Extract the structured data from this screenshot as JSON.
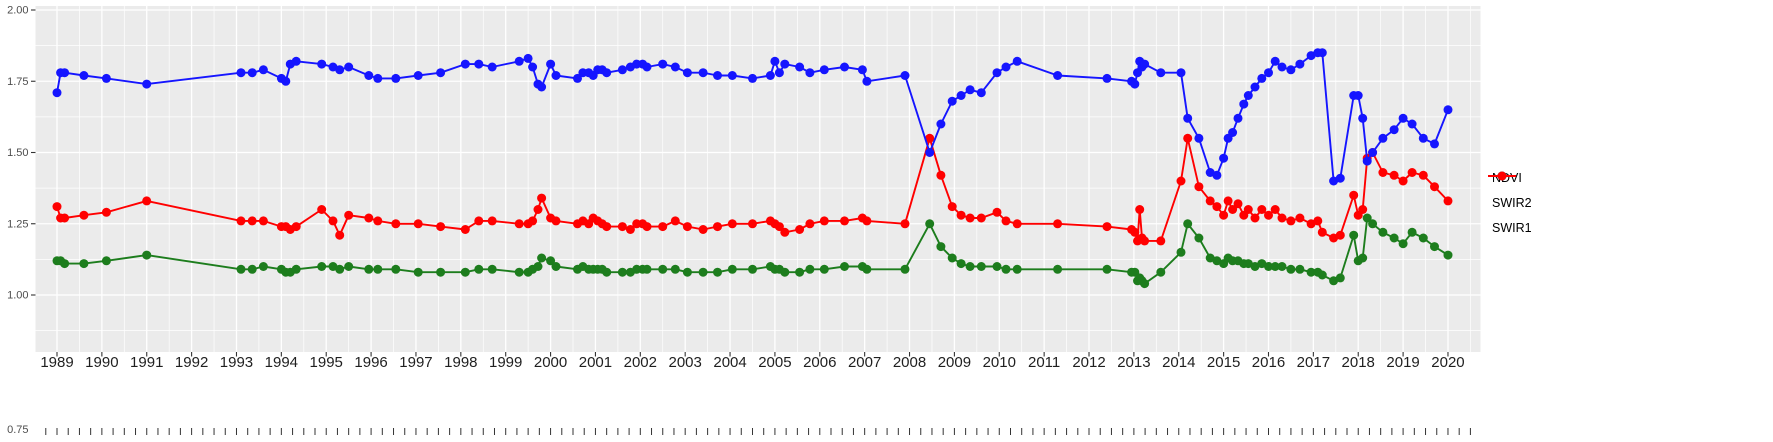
{
  "figure": {
    "background": "#FFFFFF",
    "panel_background": "#EBEBEB",
    "grid_color": "#FFFFFF",
    "tick_mark_color": "#333333",
    "y_axis_text_color": "#4D4D4D",
    "x_axis_text_color": "#1F1F1F"
  },
  "legend": {
    "position": "right-center",
    "items": [
      {
        "label": "NDVI",
        "color": "#1515FF"
      },
      {
        "label": "SWIR2",
        "color": "#1D7D1D"
      },
      {
        "label": "SWIR1",
        "color": "#FF0000"
      }
    ]
  },
  "chart_data": {
    "type": "line",
    "title": "",
    "xlabel": "",
    "ylabel": "",
    "grid": true,
    "legend_position": "right",
    "x_ticks": [
      1989,
      1990,
      1991,
      1992,
      1993,
      1994,
      1995,
      1996,
      1997,
      1998,
      1999,
      2000,
      2001,
      2002,
      2003,
      2004,
      2005,
      2006,
      2007,
      2008,
      2009,
      2010,
      2011,
      2012,
      2013,
      2014,
      2015,
      2016,
      2017,
      2018,
      2019,
      2020
    ],
    "y_ticks": [
      2.0,
      1.75,
      1.5,
      1.25,
      1.0
    ],
    "y_tick_labels": [
      "2.00",
      "1.75",
      "1.50",
      "1.25",
      "1.00"
    ],
    "y_bottom_tick_label": "0.75",
    "ylim": [
      0.75,
      2.0
    ],
    "xlim": [
      1988.5,
      2020.7
    ],
    "x": [
      1989.0,
      1989.08,
      1989.17,
      1989.6,
      1990.1,
      1991.0,
      1993.1,
      1993.35,
      1993.6,
      1994.0,
      1994.1,
      1994.2,
      1994.33,
      1994.9,
      1995.15,
      1995.3,
      1995.5,
      1995.95,
      1996.15,
      1996.55,
      1997.05,
      1997.55,
      1998.1,
      1998.4,
      1998.7,
      1999.3,
      1999.5,
      1999.6,
      1999.72,
      1999.8,
      2000.0,
      2000.12,
      2000.6,
      2000.72,
      2000.85,
      2000.95,
      2001.05,
      2001.15,
      2001.25,
      2001.6,
      2001.78,
      2001.92,
      2002.05,
      2002.15,
      2002.5,
      2002.78,
      2003.05,
      2003.4,
      2003.72,
      2004.05,
      2004.5,
      2004.9,
      2005.0,
      2005.1,
      2005.22,
      2005.55,
      2005.78,
      2006.1,
      2006.55,
      2006.95,
      2007.05,
      2007.9,
      2008.45,
      2008.7,
      2008.95,
      2009.15,
      2009.35,
      2009.6,
      2009.95,
      2010.15,
      2010.4,
      2011.3,
      2012.4,
      2012.95,
      2013.02,
      2013.08,
      2013.13,
      2013.18,
      2013.24,
      2013.6,
      2014.05,
      2014.2,
      2014.45,
      2014.7,
      2014.85,
      2015.0,
      2015.1,
      2015.2,
      2015.32,
      2015.45,
      2015.55,
      2015.7,
      2015.85,
      2016.0,
      2016.15,
      2016.3,
      2016.5,
      2016.7,
      2016.95,
      2017.1,
      2017.2,
      2017.45,
      2017.6,
      2017.9,
      2018.0,
      2018.1,
      2018.2,
      2018.32,
      2018.55,
      2018.8,
      2019.0,
      2019.2,
      2019.45,
      2019.7,
      2020.0
    ],
    "series": [
      {
        "name": "NDVI",
        "color": "#1515FF",
        "values": [
          1.71,
          1.78,
          1.78,
          1.77,
          1.76,
          1.74,
          1.78,
          1.78,
          1.79,
          1.76,
          1.75,
          1.81,
          1.82,
          1.81,
          1.8,
          1.79,
          1.8,
          1.77,
          1.76,
          1.76,
          1.77,
          1.78,
          1.81,
          1.81,
          1.8,
          1.82,
          1.83,
          1.8,
          1.74,
          1.73,
          1.81,
          1.77,
          1.76,
          1.78,
          1.78,
          1.77,
          1.79,
          1.79,
          1.78,
          1.79,
          1.8,
          1.81,
          1.81,
          1.8,
          1.81,
          1.8,
          1.78,
          1.78,
          1.77,
          1.77,
          1.76,
          1.77,
          1.82,
          1.78,
          1.81,
          1.8,
          1.78,
          1.79,
          1.8,
          1.79,
          1.75,
          1.77,
          1.5,
          1.6,
          1.68,
          1.7,
          1.72,
          1.71,
          1.78,
          1.8,
          1.82,
          1.77,
          1.76,
          1.75,
          1.74,
          1.78,
          1.82,
          1.8,
          1.81,
          1.78,
          1.78,
          1.62,
          1.55,
          1.43,
          1.42,
          1.48,
          1.55,
          1.57,
          1.62,
          1.67,
          1.7,
          1.73,
          1.76,
          1.78,
          1.82,
          1.8,
          1.79,
          1.81,
          1.84,
          1.85,
          1.85,
          1.4,
          1.41,
          1.7,
          1.7,
          1.62,
          1.47,
          1.5,
          1.55,
          1.58,
          1.62,
          1.6,
          1.55,
          1.53,
          1.65
        ]
      },
      {
        "name": "SWIR2",
        "color": "#1D7D1D",
        "values": [
          1.12,
          1.12,
          1.11,
          1.11,
          1.12,
          1.14,
          1.09,
          1.09,
          1.1,
          1.09,
          1.08,
          1.08,
          1.09,
          1.1,
          1.1,
          1.09,
          1.1,
          1.09,
          1.09,
          1.09,
          1.08,
          1.08,
          1.08,
          1.09,
          1.09,
          1.08,
          1.08,
          1.09,
          1.1,
          1.13,
          1.12,
          1.1,
          1.09,
          1.1,
          1.09,
          1.09,
          1.09,
          1.09,
          1.08,
          1.08,
          1.08,
          1.09,
          1.09,
          1.09,
          1.09,
          1.09,
          1.08,
          1.08,
          1.08,
          1.09,
          1.09,
          1.1,
          1.09,
          1.09,
          1.08,
          1.08,
          1.09,
          1.09,
          1.1,
          1.1,
          1.09,
          1.09,
          1.25,
          1.17,
          1.13,
          1.11,
          1.1,
          1.1,
          1.1,
          1.09,
          1.09,
          1.09,
          1.09,
          1.08,
          1.08,
          1.05,
          1.06,
          1.05,
          1.04,
          1.08,
          1.15,
          1.25,
          1.2,
          1.13,
          1.12,
          1.11,
          1.13,
          1.12,
          1.12,
          1.11,
          1.11,
          1.1,
          1.11,
          1.1,
          1.1,
          1.1,
          1.09,
          1.09,
          1.08,
          1.08,
          1.07,
          1.05,
          1.06,
          1.21,
          1.12,
          1.13,
          1.27,
          1.25,
          1.22,
          1.2,
          1.18,
          1.22,
          1.2,
          1.17,
          1.14
        ]
      },
      {
        "name": "SWIR1",
        "color": "#FF0000",
        "values": [
          1.31,
          1.27,
          1.27,
          1.28,
          1.29,
          1.33,
          1.26,
          1.26,
          1.26,
          1.24,
          1.24,
          1.23,
          1.24,
          1.3,
          1.26,
          1.21,
          1.28,
          1.27,
          1.26,
          1.25,
          1.25,
          1.24,
          1.23,
          1.26,
          1.26,
          1.25,
          1.25,
          1.26,
          1.3,
          1.34,
          1.27,
          1.26,
          1.25,
          1.26,
          1.25,
          1.27,
          1.26,
          1.25,
          1.24,
          1.24,
          1.23,
          1.25,
          1.25,
          1.24,
          1.24,
          1.26,
          1.24,
          1.23,
          1.24,
          1.25,
          1.25,
          1.26,
          1.25,
          1.24,
          1.22,
          1.23,
          1.25,
          1.26,
          1.26,
          1.27,
          1.26,
          1.25,
          1.55,
          1.42,
          1.31,
          1.28,
          1.27,
          1.27,
          1.29,
          1.26,
          1.25,
          1.25,
          1.24,
          1.23,
          1.22,
          1.19,
          1.3,
          1.2,
          1.19,
          1.19,
          1.4,
          1.55,
          1.38,
          1.33,
          1.31,
          1.28,
          1.33,
          1.3,
          1.32,
          1.28,
          1.3,
          1.27,
          1.3,
          1.28,
          1.3,
          1.27,
          1.26,
          1.27,
          1.25,
          1.26,
          1.22,
          1.2,
          1.21,
          1.35,
          1.28,
          1.3,
          1.48,
          1.5,
          1.43,
          1.42,
          1.4,
          1.43,
          1.42,
          1.38,
          1.33
        ]
      }
    ]
  }
}
